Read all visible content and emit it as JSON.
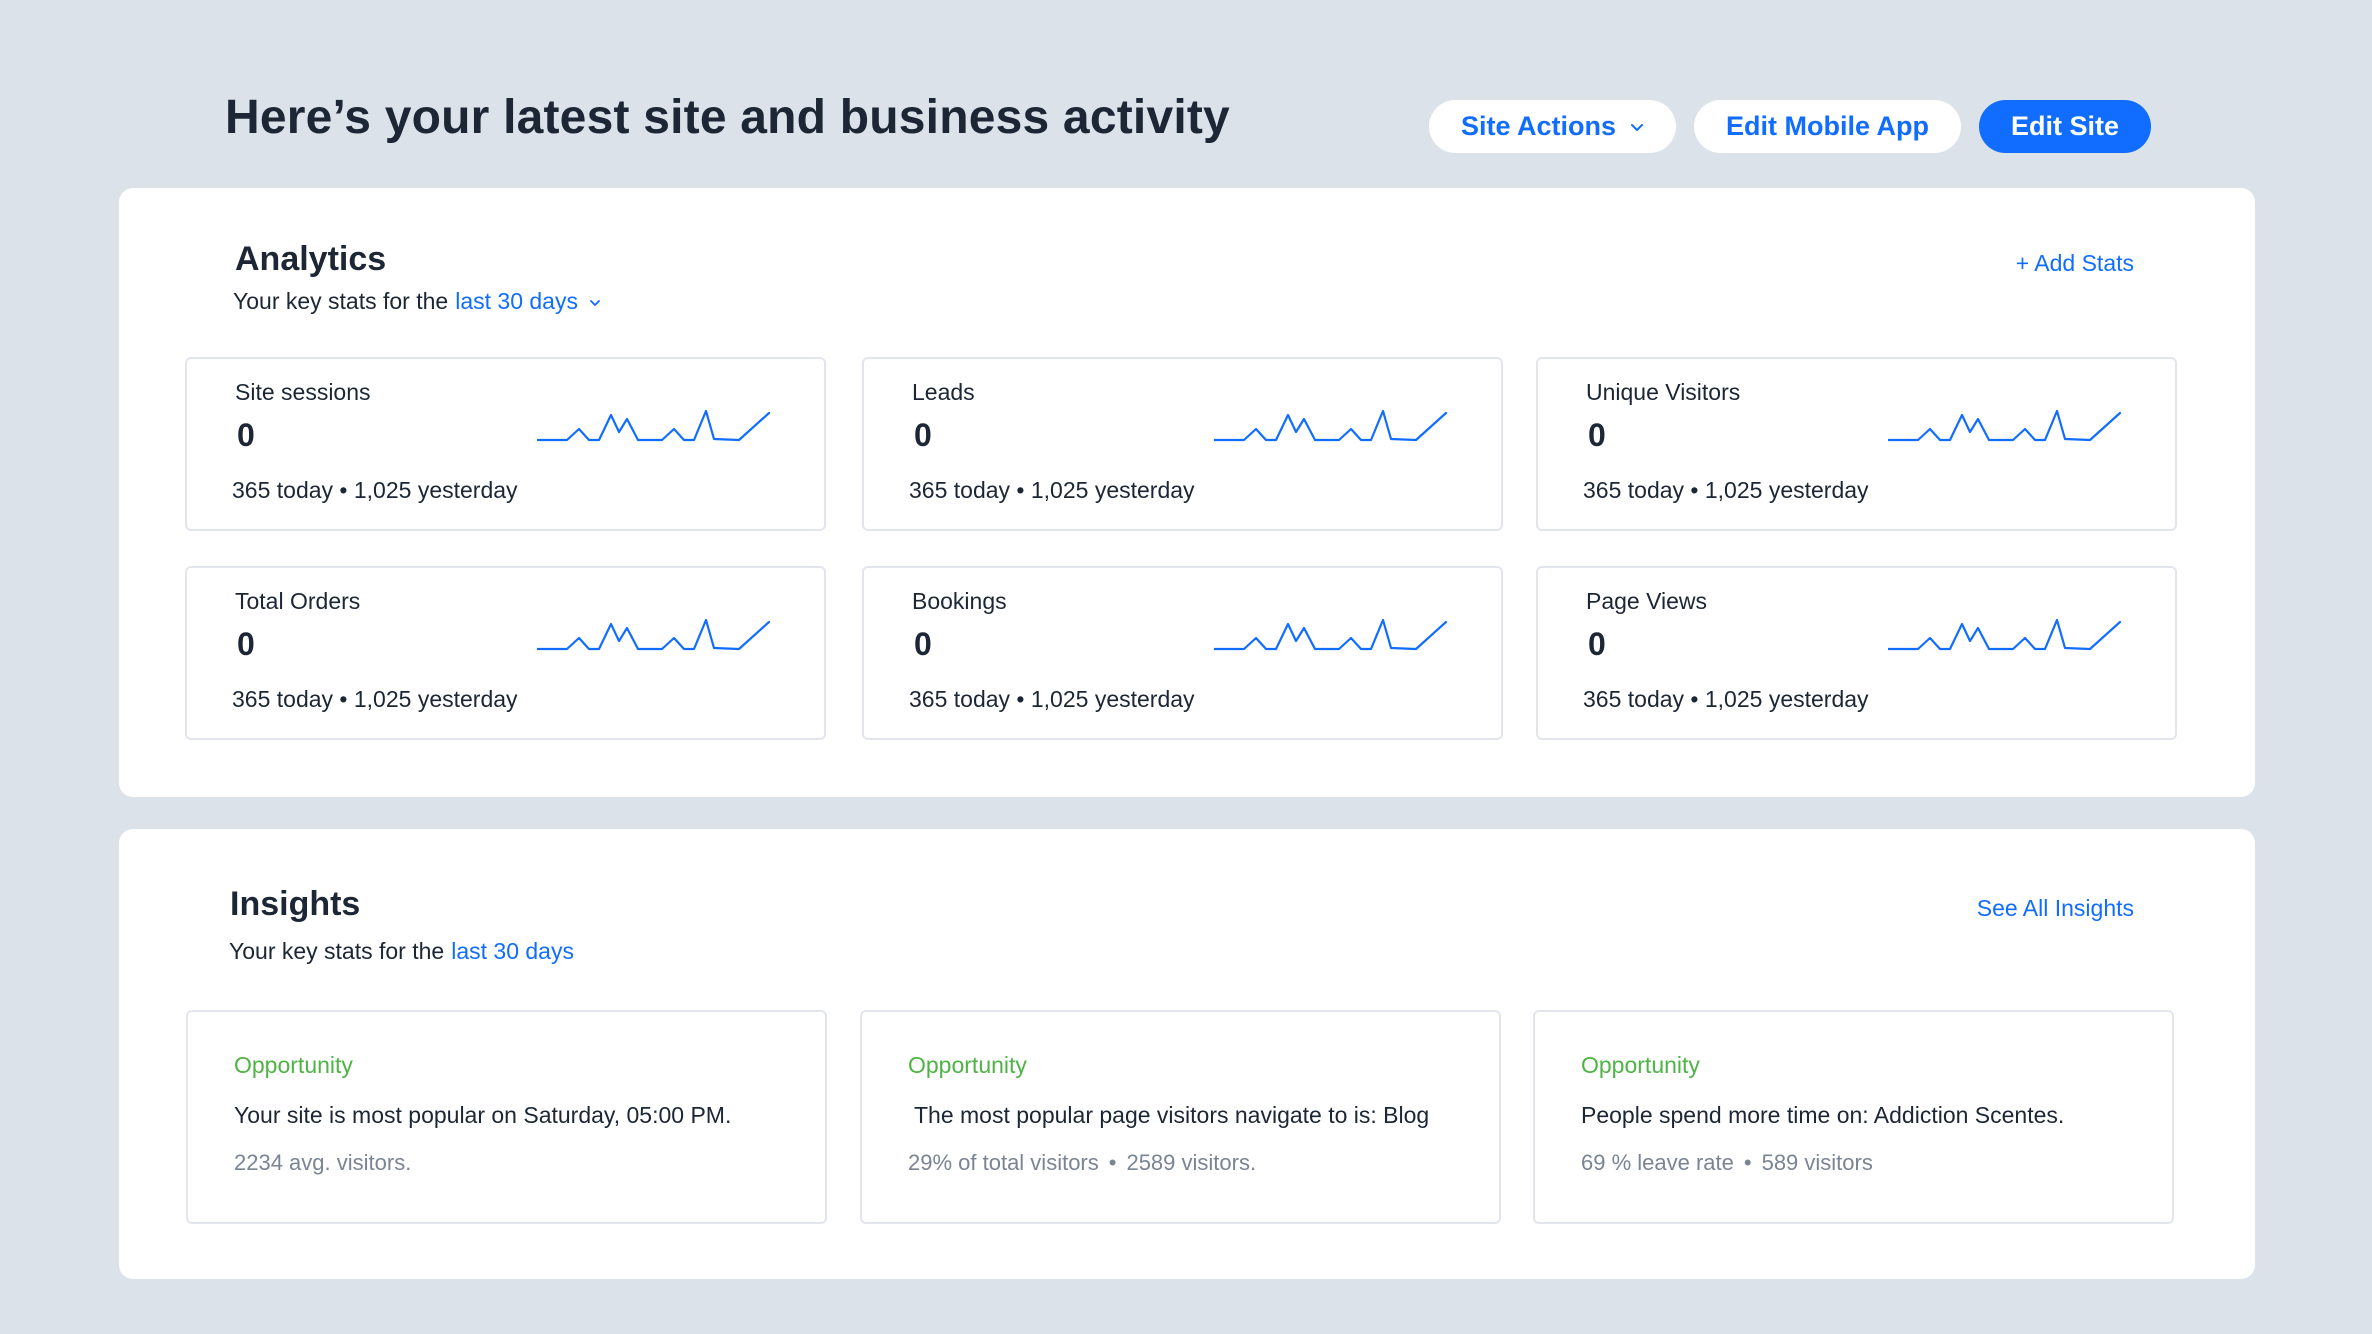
{
  "header": {
    "title": "Here’s your latest site and business activity",
    "site_actions_label": "Site Actions",
    "edit_mobile_label": "Edit Mobile App",
    "edit_site_label": "Edit Site"
  },
  "analytics": {
    "title": "Analytics",
    "subtitle_prefix": "Your key stats for the",
    "period_label": "last 30 days",
    "add_stats_label": "+ Add Stats",
    "cards": [
      {
        "label": "Site sessions",
        "value": "0",
        "today": "365 today",
        "sep": "•",
        "yesterday": "1,025 yesterday"
      },
      {
        "label": "Leads",
        "value": "0",
        "today": "365 today",
        "sep": "•",
        "yesterday": "1,025 yesterday"
      },
      {
        "label": "Unique Visitors",
        "value": "0",
        "today": "365 today",
        "sep": "•",
        "yesterday": "1,025 yesterday"
      },
      {
        "label": "Total Orders",
        "value": "0",
        "today": "365 today",
        "sep": "•",
        "yesterday": "1,025 yesterday"
      },
      {
        "label": "Bookings",
        "value": "0",
        "today": "365 today",
        "sep": "•",
        "yesterday": "1,025 yesterday"
      },
      {
        "label": "Page Views",
        "value": "0",
        "today": "365 today",
        "sep": "•",
        "yesterday": "1,025 yesterday"
      }
    ]
  },
  "insights": {
    "title": "Insights",
    "subtitle_prefix": "Your key stats for the",
    "period_label": "last 30 days",
    "see_all_label": "See All Insights",
    "cards": [
      {
        "tag": "Opportunity",
        "text": "Your site is most popular on Saturday, 05:00 PM.",
        "foot_a": "2234 avg. visitors.",
        "sep": "",
        "foot_b": ""
      },
      {
        "tag": "Opportunity",
        "text": "The most popular page visitors navigate to is: Blog",
        "foot_a": "29% of total visitors",
        "sep": "•",
        "foot_b": "2589 visitors."
      },
      {
        "tag": "Opportunity",
        "text": "People spend more time on: Addiction Scentes.",
        "foot_a": "69 % leave rate",
        "sep": "•",
        "foot_b": "589 visitors"
      }
    ]
  },
  "colors": {
    "accent": "#116dff",
    "background": "#dbe2ea",
    "opportunity": "#4eb445",
    "sparkline": "#116dff"
  },
  "icons": {
    "dropdown": "chevron-down-icon",
    "sparkline": "sparkline-chart-icon"
  }
}
